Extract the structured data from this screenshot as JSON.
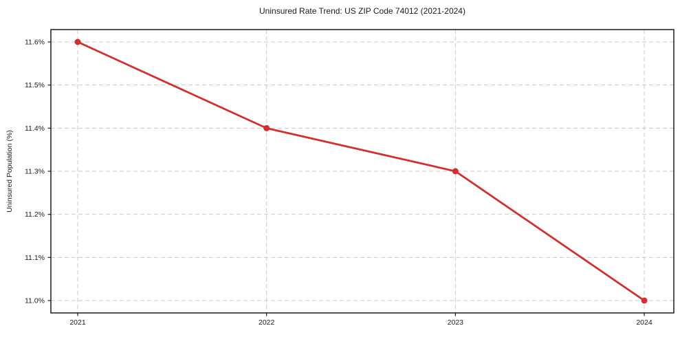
{
  "chart_data": {
    "type": "line",
    "title": "Uninsured Rate Trend: US ZIP Code 74012 (2021-2024)",
    "xlabel": "",
    "ylabel": "Uninsured Population (%)",
    "categories": [
      "2021",
      "2022",
      "2023",
      "2024"
    ],
    "series": [
      {
        "name": "Uninsured rate",
        "values": [
          11.6,
          11.4,
          11.3,
          11.0
        ],
        "color": "#d32f2f",
        "marker": "circle",
        "line_width": 2.8,
        "marker_radius": 4.5
      }
    ],
    "yticks": [
      11.0,
      11.1,
      11.2,
      11.3,
      11.4,
      11.5,
      11.6
    ],
    "ytick_labels": [
      "11.0%",
      "11.1%",
      "11.2%",
      "11.3%",
      "11.4%",
      "11.5%",
      "11.6%"
    ],
    "ylim": [
      10.971,
      11.629
    ],
    "grid": true,
    "grid_color": "#c9c9c9",
    "axis_color": "#1a1a1a",
    "background_color": "#ffffff",
    "legend": "none"
  }
}
